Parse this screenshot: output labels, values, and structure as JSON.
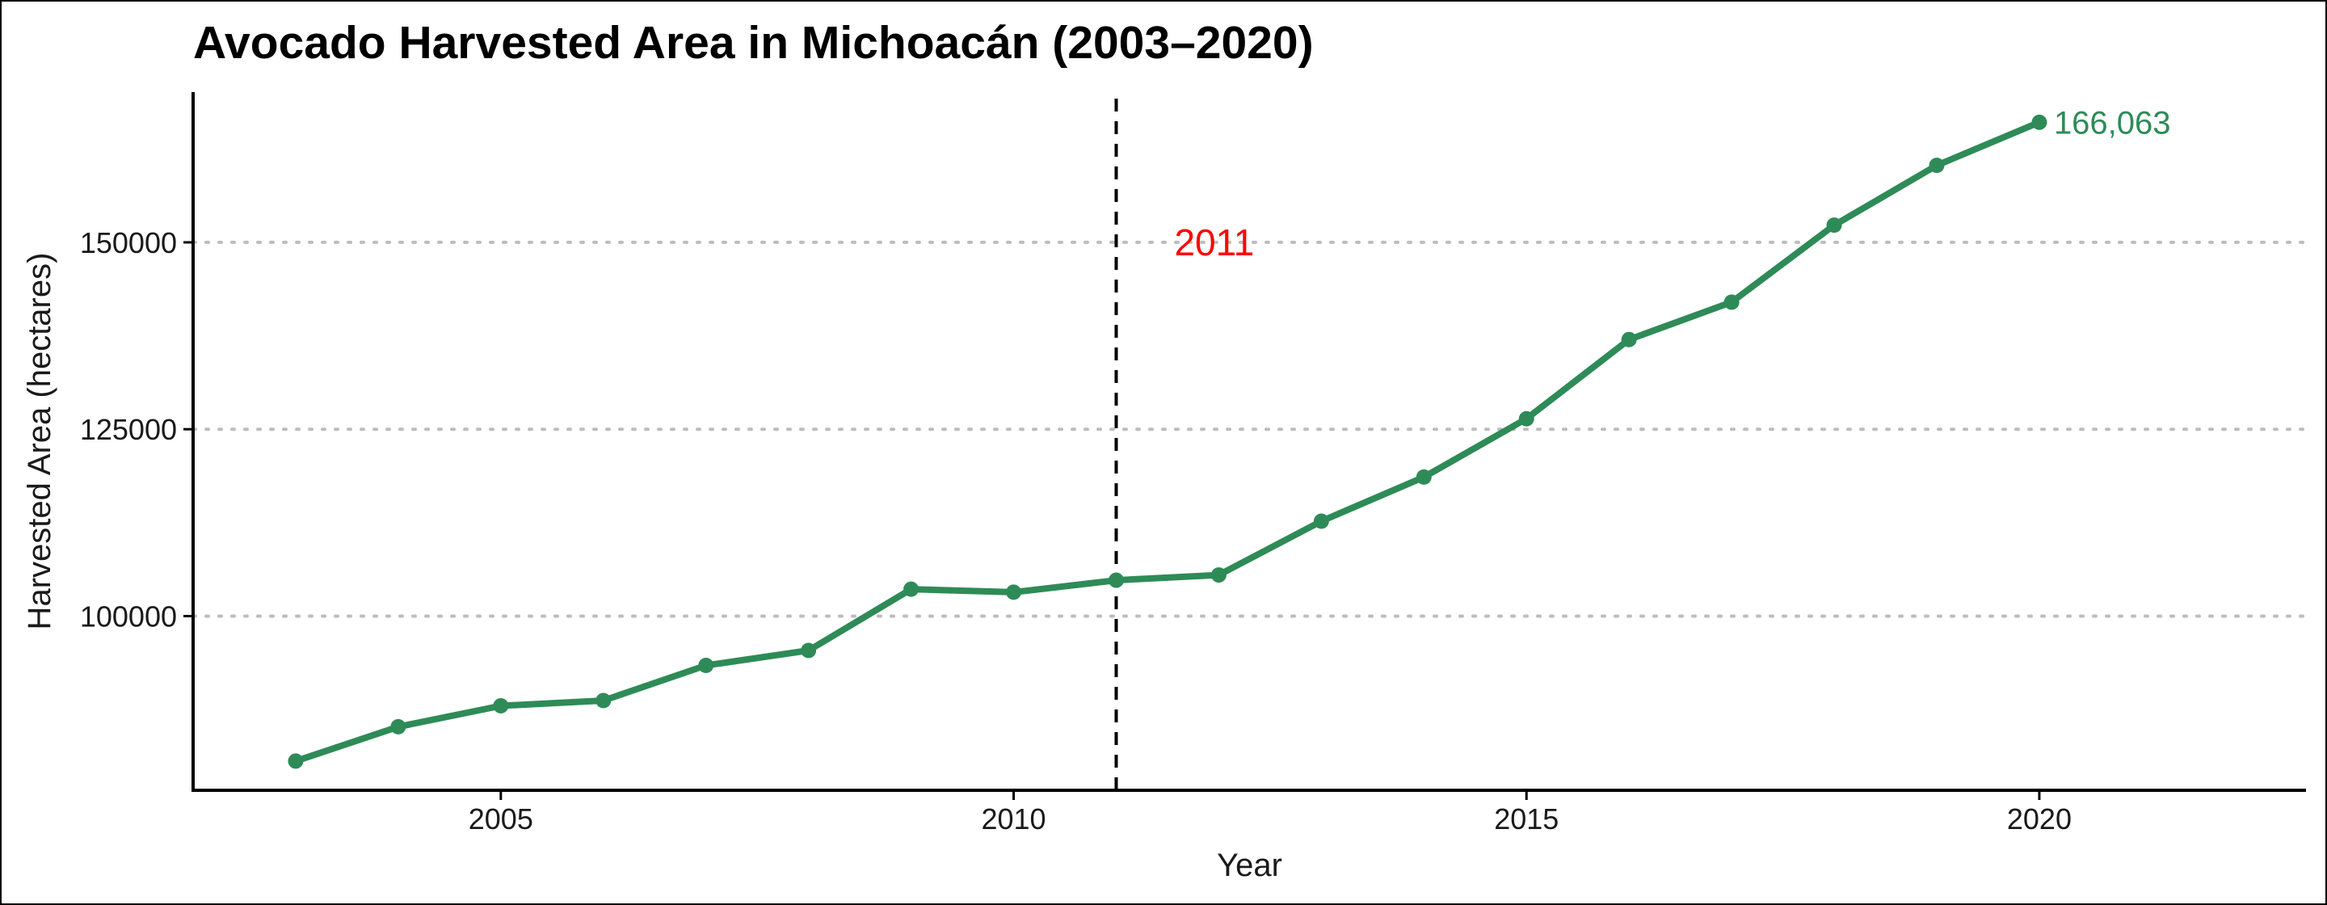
{
  "chart_data": {
    "type": "line",
    "title": "Avocado Harvested Area in Michoacán (2003–2020)",
    "xlabel": "Year",
    "ylabel": "Harvested Area (hectares)",
    "xlim": [
      2002,
      2022.6
    ],
    "ylim": [
      76700,
      170100
    ],
    "x_ticks": [
      2005,
      2010,
      2015,
      2020
    ],
    "y_ticks": [
      100000,
      125000,
      150000
    ],
    "grid": "horizontal dotted at y ticks",
    "line_color": "#2e8b57",
    "series": [
      {
        "x": [
          2003,
          2004,
          2005,
          2006,
          2007,
          2008,
          2009,
          2010,
          2011,
          2012,
          2013,
          2014,
          2015,
          2016,
          2017,
          2018,
          2019,
          2020
        ],
        "y": [
          80600,
          85200,
          88000,
          88700,
          93400,
          95400,
          103600,
          103200,
          104800,
          105500,
          112700,
          118600,
          126400,
          137000,
          142000,
          152300,
          160300,
          166063
        ]
      }
    ],
    "annotations": {
      "vline_x": 2011,
      "vline_label": "2011",
      "vline_label_color": "#ff0000",
      "end_label": "166,063",
      "end_label_color": "#2e8b57"
    }
  }
}
